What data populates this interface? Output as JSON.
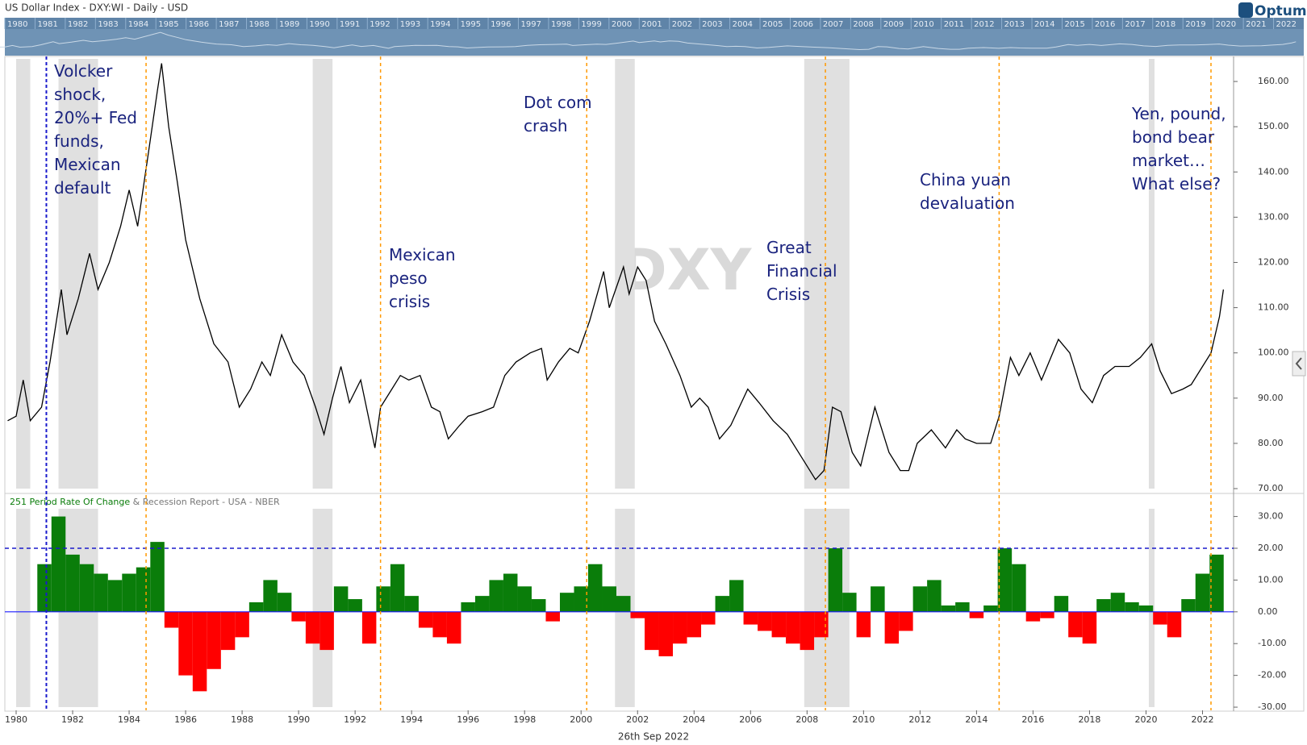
{
  "header": {
    "title": "US Dollar Index - DXY:WI - Daily - USD",
    "logo": "Optuma",
    "watermark": "DXY",
    "date": "26th Sep 2022",
    "navigator_labels": [
      1980,
      1981,
      1982,
      1983,
      1984,
      1985,
      1986,
      1987,
      1988,
      1989,
      1990,
      1991,
      1992,
      1993,
      1994,
      1995,
      1996,
      1997,
      1998,
      1999,
      2000,
      2001,
      2002,
      2003,
      2004,
      2005,
      2006,
      2007,
      2008,
      2009,
      2010,
      2011,
      2012,
      2013,
      2014,
      2015,
      2016,
      2017,
      2018,
      2019,
      2020,
      2021,
      2022
    ]
  },
  "chart_data": [
    {
      "type": "line",
      "xlim": [
        1979.6,
        2023.1
      ],
      "ylim": [
        70,
        165
      ],
      "yticks": [
        {
          "value": 70,
          "label": "70.00"
        },
        {
          "value": 80,
          "label": "80.00"
        },
        {
          "value": 90,
          "label": "90.00"
        },
        {
          "value": 100,
          "label": "100.00"
        },
        {
          "value": 110,
          "label": "110.00"
        },
        {
          "value": 120,
          "label": "120.00"
        },
        {
          "value": 130,
          "label": "130.00"
        },
        {
          "value": 140,
          "label": "140.00"
        },
        {
          "value": 150,
          "label": "150.00"
        },
        {
          "value": 160,
          "label": "160.00"
        }
      ],
      "recessions": [
        [
          1980.0,
          1980.5
        ],
        [
          1981.5,
          1982.9
        ],
        [
          1990.5,
          1991.2
        ],
        [
          2001.2,
          2001.9
        ],
        [
          2007.9,
          2009.5
        ],
        [
          2020.1,
          2020.3
        ]
      ],
      "events": [
        1984.6,
        1992.9,
        2000.2,
        2008.65,
        2014.8,
        2022.3
      ],
      "event_line": 1981.07,
      "annotations": [
        [
          "Volcker",
          "shock,",
          "20%+ Fed",
          "funds,",
          "Mexican",
          "default"
        ],
        [
          "Mexican",
          "peso",
          "crisis"
        ],
        [
          "Dot com",
          "crash"
        ],
        [
          "Great",
          "Financial",
          "Crisis"
        ],
        [
          "China yuan",
          "devaluation"
        ],
        [
          "Yen, pound,",
          "bond bear",
          "market…",
          "What else?"
        ]
      ],
      "series": [
        {
          "color": "#000000",
          "x": [
            1979.7,
            1980.0,
            1980.25,
            1980.5,
            1980.9,
            1981.2,
            1981.6,
            1981.8,
            1982.2,
            1982.6,
            1982.9,
            1983.3,
            1983.7,
            1984.0,
            1984.3,
            1984.7,
            1985.0,
            1985.15,
            1985.4,
            1985.7,
            1986.0,
            1986.5,
            1987.0,
            1987.5,
            1987.9,
            1988.3,
            1988.7,
            1989.0,
            1989.4,
            1989.8,
            1990.2,
            1990.6,
            1990.9,
            1991.2,
            1991.5,
            1991.8,
            1992.2,
            1992.7,
            1992.9,
            1993.3,
            1993.6,
            1993.9,
            1994.3,
            1994.7,
            1995.0,
            1995.3,
            1995.7,
            1996.0,
            1996.5,
            1996.9,
            1997.3,
            1997.7,
            1998.2,
            1998.6,
            1998.8,
            1999.2,
            1999.6,
            1999.9,
            2000.3,
            2000.8,
            2001.0,
            2001.5,
            2001.7,
            2002.0,
            2002.3,
            2002.6,
            2003.0,
            2003.5,
            2003.9,
            2004.2,
            2004.5,
            2004.9,
            2005.3,
            2005.9,
            2006.3,
            2006.8,
            2007.3,
            2007.9,
            2008.3,
            2008.6,
            2008.9,
            2009.2,
            2009.6,
            2009.9,
            2010.4,
            2010.9,
            2011.3,
            2011.6,
            2011.9,
            2012.4,
            2012.9,
            2013.3,
            2013.6,
            2014.0,
            2014.5,
            2014.8,
            2015.2,
            2015.5,
            2015.9,
            2016.3,
            2016.9,
            2017.3,
            2017.7,
            2018.1,
            2018.5,
            2018.9,
            2019.4,
            2019.8,
            2020.2,
            2020.5,
            2020.9,
            2021.3,
            2021.6,
            2021.9,
            2022.3,
            2022.6,
            2022.74
          ],
          "values": [
            85,
            86,
            94,
            85,
            88,
            98,
            114,
            104,
            112,
            122,
            114,
            120,
            128,
            136,
            128,
            145,
            158,
            164,
            150,
            138,
            125,
            112,
            102,
            98,
            88,
            92,
            98,
            95,
            104,
            98,
            95,
            88,
            82,
            90,
            97,
            89,
            94,
            79,
            88,
            92,
            95,
            94,
            95,
            88,
            87,
            81,
            84,
            86,
            87,
            88,
            95,
            98,
            100,
            101,
            94,
            98,
            101,
            100,
            107,
            118,
            110,
            119,
            113,
            119,
            116,
            107,
            102,
            95,
            88,
            90,
            88,
            81,
            84,
            92,
            89,
            85,
            82,
            76,
            72,
            74,
            88,
            87,
            78,
            75,
            88,
            78,
            74,
            74,
            80,
            83,
            79,
            83,
            81,
            80,
            80,
            86,
            99,
            95,
            100,
            94,
            103,
            100,
            92,
            89,
            95,
            97,
            97,
            99,
            102,
            96,
            91,
            92,
            93,
            96,
            100,
            108,
            114
          ]
        }
      ]
    },
    {
      "type": "bar",
      "title": "251 Period Rate Of Change",
      "subtitle": "& Recession Report - USA - NBER",
      "xlim": [
        1979.6,
        2023.1
      ],
      "ylim": [
        -31,
        37
      ],
      "threshold": 20,
      "positive_color": "#0a7d0a",
      "negative_color": "#ff0000",
      "xticks": [
        1980,
        1982,
        1984,
        1986,
        1988,
        1990,
        1992,
        1994,
        1996,
        1998,
        2000,
        2002,
        2004,
        2006,
        2008,
        2010,
        2012,
        2014,
        2016,
        2018,
        2020,
        2022
      ],
      "yticks": [
        {
          "value": -30,
          "label": "-30.00"
        },
        {
          "value": -20,
          "label": "-20.00"
        },
        {
          "value": -10,
          "label": "-10.00"
        },
        {
          "value": 0,
          "label": "0.00"
        },
        {
          "value": 10,
          "label": "10.00"
        },
        {
          "value": 20,
          "label": "20.00"
        },
        {
          "value": 30,
          "label": "30.00"
        }
      ],
      "x": [
        1981.0,
        1981.5,
        1982.0,
        1982.5,
        1983.0,
        1983.5,
        1984.0,
        1984.5,
        1985.0,
        1985.5,
        1986.0,
        1986.5,
        1987.0,
        1987.5,
        1988.0,
        1988.5,
        1989.0,
        1989.5,
        1990.0,
        1990.5,
        1991.0,
        1991.5,
        1992.0,
        1992.5,
        1993.0,
        1993.5,
        1994.0,
        1994.5,
        1995.0,
        1995.5,
        1996.0,
        1996.5,
        1997.0,
        1997.5,
        1998.0,
        1998.5,
        1999.0,
        1999.5,
        2000.0,
        2000.5,
        2001.0,
        2001.5,
        2002.0,
        2002.5,
        2003.0,
        2003.5,
        2004.0,
        2004.5,
        2005.0,
        2005.5,
        2006.0,
        2006.5,
        2007.0,
        2007.5,
        2008.0,
        2008.5,
        2009.0,
        2009.5,
        2010.0,
        2010.5,
        2011.0,
        2011.5,
        2012.0,
        2012.5,
        2013.0,
        2013.5,
        2014.0,
        2014.5,
        2015.0,
        2015.5,
        2016.0,
        2016.5,
        2017.0,
        2017.5,
        2018.0,
        2018.5,
        2019.0,
        2019.5,
        2020.0,
        2020.5,
        2021.0,
        2021.5,
        2022.0,
        2022.5
      ],
      "values": [
        15,
        30,
        18,
        15,
        12,
        10,
        12,
        14,
        22,
        -5,
        -20,
        -25,
        -18,
        -12,
        -8,
        3,
        10,
        6,
        -3,
        -10,
        -12,
        8,
        4,
        -10,
        8,
        15,
        5,
        -5,
        -8,
        -10,
        3,
        5,
        10,
        12,
        8,
        4,
        -3,
        6,
        8,
        15,
        8,
        5,
        -2,
        -12,
        -14,
        -10,
        -8,
        -4,
        5,
        10,
        -4,
        -6,
        -8,
        -10,
        -12,
        -8,
        20,
        6,
        -8,
        8,
        -10,
        -6,
        8,
        10,
        2,
        3,
        -2,
        2,
        20,
        15,
        -3,
        -2,
        5,
        -8,
        -10,
        4,
        6,
        3,
        2,
        -4,
        -8,
        4,
        12,
        18
      ]
    }
  ]
}
